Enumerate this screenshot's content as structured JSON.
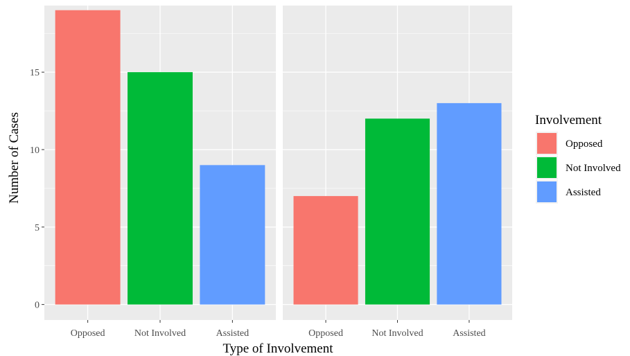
{
  "chart_data": {
    "type": "bar",
    "facets": [
      {
        "categories": [
          "Opposed",
          "Not Involved",
          "Assisted"
        ],
        "values": [
          19,
          15,
          9
        ]
      },
      {
        "categories": [
          "Opposed",
          "Not Involved",
          "Assisted"
        ],
        "values": [
          7,
          12,
          13
        ]
      }
    ],
    "xlabel": "Type of Involvement",
    "ylabel": "Number of Cases",
    "ylim": [
      -1,
      19.3
    ],
    "yticks": [
      0,
      5,
      10,
      15
    ],
    "grid": true,
    "legend": {
      "title": "Involvement",
      "position": "right",
      "entries": [
        "Opposed",
        "Not Involved",
        "Assisted"
      ]
    },
    "colors": {
      "Opposed": "#F8766D",
      "Not Involved": "#00BA38",
      "Assisted": "#619CFF",
      "panel_background": "#EBEBEB",
      "grid_line": "#FFFFFF"
    }
  }
}
